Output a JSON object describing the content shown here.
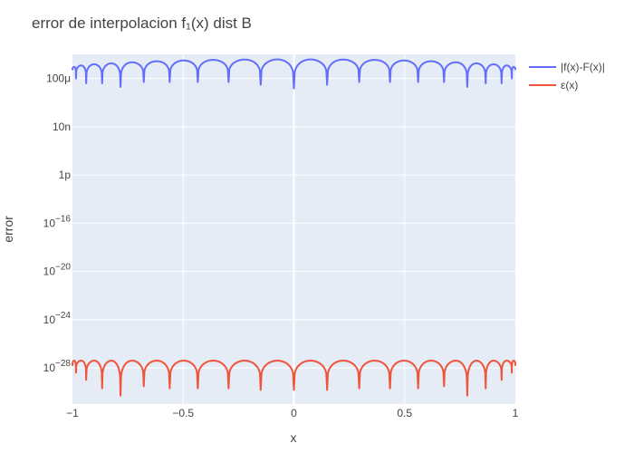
{
  "chart_data": {
    "type": "line",
    "title": "error de interpolacion f₁(x) dist B",
    "xlabel": "x",
    "ylabel": "error",
    "x_range": [
      -1,
      1
    ],
    "y_scale": "log",
    "y_range": [
      1e-31,
      0.01
    ],
    "x_ticks": [
      {
        "value": -1,
        "label": "−1"
      },
      {
        "value": -0.5,
        "label": "−0.5"
      },
      {
        "value": 0,
        "label": "0"
      },
      {
        "value": 0.5,
        "label": "0.5"
      },
      {
        "value": 1,
        "label": "1"
      }
    ],
    "y_ticks": [
      {
        "value": 0.0001,
        "label": "100μ"
      },
      {
        "value": 1e-08,
        "label": "10n"
      },
      {
        "value": 1e-12,
        "label": "1p"
      },
      {
        "value": 1e-16,
        "base": "10",
        "exp": "−16"
      },
      {
        "value": 1e-20,
        "base": "10",
        "exp": "−20"
      },
      {
        "value": 1e-24,
        "base": "10",
        "exp": "−24"
      },
      {
        "value": 1e-28,
        "base": "10",
        "exp": "−28"
      }
    ],
    "grid": true,
    "legend_position": "top-right",
    "nodes": [
      -1,
      -0.984,
      -0.938,
      -0.866,
      -0.783,
      -0.678,
      -0.561,
      -0.434,
      -0.295,
      -0.15,
      0,
      0.15,
      0.295,
      0.434,
      0.561,
      0.678,
      0.783,
      0.866,
      0.938,
      0.984,
      1
    ],
    "series": [
      {
        "name": "|f(x)-F(x)|",
        "color": "#636efa",
        "peak_levels": [
          0.00092,
          0.0012,
          0.0015,
          0.0018,
          0.0022,
          0.0027,
          0.0031,
          0.0035,
          0.0037,
          0.0038,
          0.0038,
          0.0037,
          0.0035,
          0.0031,
          0.0027,
          0.0022,
          0.0018,
          0.0015,
          0.0012,
          0.00092
        ],
        "dip_levels": [
          0.0005,
          0.0001,
          4e-05,
          4e-05,
          2e-05,
          5e-05,
          5e-05,
          5e-05,
          5e-05,
          3e-05,
          1.5e-05,
          3e-05,
          5e-05,
          5e-05,
          5e-05,
          5e-05,
          2e-05,
          4e-05,
          4e-05,
          0.0001,
          0.0005
        ]
      },
      {
        "name": "ε(x)",
        "color": "#ef553b",
        "peak_levels": [
          4e-28,
          4e-28,
          4e-28,
          4e-28,
          4e-28,
          4e-28,
          4e-28,
          4e-28,
          4e-28,
          4e-28,
          4e-28,
          4e-28,
          4e-28,
          4e-28,
          4e-28,
          4e-28,
          4e-28,
          4e-28,
          4e-28,
          4e-28
        ],
        "dip_levels": [
          1.5e-28,
          4e-29,
          1e-29,
          2e-30,
          5e-31,
          3e-30,
          2e-30,
          2e-30,
          2e-30,
          1.5e-30,
          1.5e-30,
          1.5e-30,
          2e-30,
          2e-30,
          2e-30,
          3e-30,
          5e-31,
          2e-30,
          1e-29,
          4e-29,
          1.5e-28
        ]
      }
    ]
  }
}
